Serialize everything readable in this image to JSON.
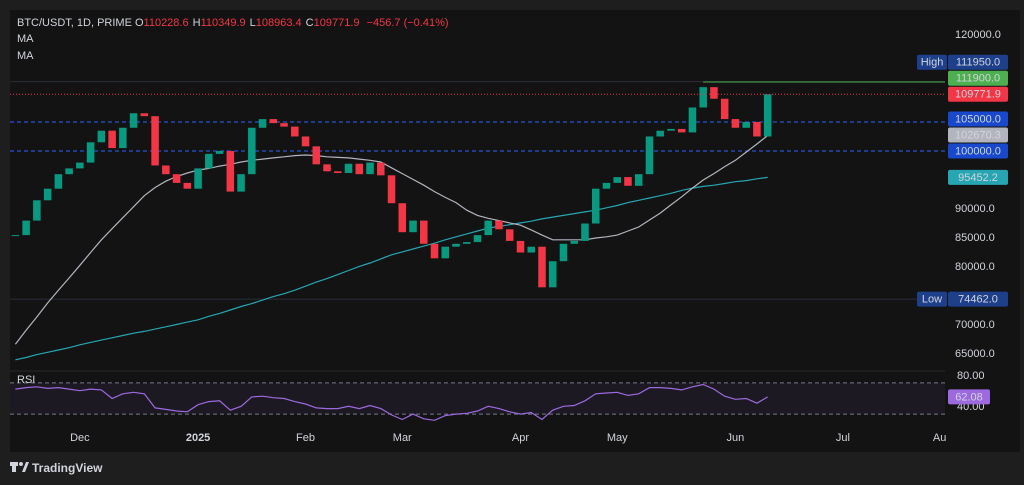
{
  "chart_data": {
    "type": "candlestick",
    "symbol": "BTC/USDT, 1D, PRIME",
    "ohlc": [
      {
        "key": "O",
        "value": 110228.6
      },
      {
        "key": "H",
        "value": 110349.9
      },
      {
        "key": "L",
        "value": 108963.4
      },
      {
        "key": "C",
        "value": 109771.9
      }
    ],
    "change": "−456.7 (−0.41%)",
    "categories": [
      null,
      null,
      null,
      null,
      null,
      null,
      "Dec",
      null,
      null,
      null,
      null,
      null,
      null,
      null,
      null,
      null,
      null,
      "2025",
      null,
      null,
      null,
      null,
      null,
      null,
      null,
      null,
      null,
      "Feb",
      null,
      null,
      null,
      null,
      null,
      null,
      null,
      null,
      "Mar",
      null,
      null,
      null,
      null,
      null,
      null,
      null,
      null,
      null,
      null,
      "Apr",
      null,
      null,
      null,
      null,
      null,
      null,
      null,
      null,
      "May",
      null,
      null,
      null,
      null,
      null,
      null,
      null,
      null,
      null,
      null,
      "Jun",
      null,
      null,
      null,
      null,
      null,
      null,
      null,
      null,
      null,
      "Jul",
      null,
      null,
      null,
      null,
      null,
      null,
      null,
      null,
      "Au"
    ],
    "series": [
      {
        "up_color": "#089981",
        "down_color": "#f23645",
        "values": [
          85500,
          88000,
          91500,
          93500,
          96000,
          97000,
          98000,
          101500,
          103500,
          100500,
          104000,
          106500,
          106000,
          97500,
          96000,
          94500,
          93500,
          97000,
          99500,
          100000,
          93000,
          96000,
          104000,
          105500,
          104800,
          104200,
          102500,
          100800,
          97700,
          96500,
          96200,
          97800,
          96000,
          98000,
          95800,
          91000,
          86000,
          88000,
          84000,
          81500,
          83500,
          84000,
          84300,
          85500,
          88000,
          86500,
          84500,
          82500,
          83500,
          76500,
          81000,
          84000,
          84500,
          87500,
          93500,
          94500,
          95500,
          94000,
          96000,
          102500,
          103500,
          103800,
          103200,
          107500,
          111000,
          109000,
          105500,
          104000,
          105000,
          102500,
          109771.9,
          null,
          null,
          null,
          null,
          null,
          null,
          null,
          null,
          null,
          null,
          null,
          null,
          null,
          null,
          null,
          null
        ]
      },
      {
        "name": "MA",
        "color": "#b2b5be",
        "values": [
          66700,
          69100,
          71400,
          73800,
          76000,
          78100,
          80300,
          82500,
          84700,
          86600,
          88500,
          90400,
          92300,
          93700,
          94800,
          95600,
          96200,
          96700,
          97000,
          97400,
          97700,
          98100,
          98400,
          98600,
          98800,
          99000,
          99200,
          99300,
          99200,
          99000,
          98900,
          98800,
          98600,
          98400,
          98100,
          97100,
          96100,
          95100,
          94100,
          93000,
          92000,
          91100,
          89800,
          88900,
          88400,
          88000,
          87600,
          87200,
          86400,
          85500,
          84700,
          84700,
          84700,
          84700,
          85000,
          85200,
          85500,
          86200,
          86900,
          88100,
          89300,
          90700,
          92100,
          93600,
          95000,
          96100,
          97300,
          98400,
          99800,
          101200,
          102670.3,
          null,
          null,
          null,
          null,
          null,
          null,
          null,
          null,
          null,
          null,
          null,
          null,
          null,
          null,
          null,
          null
        ]
      },
      {
        "name": "MA",
        "color": "#26a6b2",
        "values": [
          64000,
          64400,
          64900,
          65300,
          65700,
          66100,
          66600,
          67000,
          67400,
          67800,
          68200,
          68600,
          68900,
          69300,
          69700,
          70100,
          70500,
          70900,
          71500,
          72000,
          72600,
          73200,
          73700,
          74300,
          74900,
          75400,
          76000,
          76700,
          77400,
          78000,
          78700,
          79400,
          80100,
          80700,
          81400,
          82100,
          82600,
          83100,
          83600,
          84100,
          84700,
          85200,
          85700,
          86200,
          86700,
          87000,
          87300,
          87600,
          87900,
          88300,
          88600,
          88900,
          89200,
          89500,
          89800,
          90200,
          90600,
          91100,
          91500,
          91900,
          92300,
          92700,
          93200,
          93600,
          93900,
          94100,
          94400,
          94700,
          94900,
          95200,
          95452.2,
          null,
          null,
          null,
          null,
          null,
          null,
          null,
          null,
          null,
          null,
          null,
          null,
          null,
          null,
          null,
          null
        ]
      }
    ],
    "ylim": [
      62250,
      124300
    ],
    "yticks": [
      {
        "value": 120000,
        "label": "120000.0"
      },
      {
        "value": 90000,
        "label": "90000.0"
      },
      {
        "value": 85000,
        "label": "85000.0"
      },
      {
        "value": 80000,
        "label": "80000.0"
      },
      {
        "value": 70000,
        "label": "70000.0"
      },
      {
        "value": 65000,
        "label": "65000.0"
      }
    ],
    "price_labels": [
      {
        "tag": "High",
        "value": 111950,
        "label": "111950.0",
        "color": "#1e3f8a",
        "line": "solid",
        "line_color": "#2a2e39"
      },
      {
        "value": 111900,
        "label": "111900.0",
        "color": "#4caf50",
        "line": "solid",
        "line_color": "#4caf50"
      },
      {
        "value": 105000,
        "label": "105000.0",
        "color": "#1848cc",
        "line": "dashed",
        "line_color": "#2962ff"
      },
      {
        "value": 100000,
        "label": "100000.0",
        "color": "#1848cc",
        "line": "dashed",
        "line_color": "#2962ff"
      },
      {
        "tag": "Low",
        "value": 74462,
        "label": "74462.0",
        "color": "#1e3f8a",
        "line": "solid",
        "line_color": "#2a2e39"
      }
    ],
    "rsi": {
      "title": "RSI",
      "color": "#9c6ade",
      "ylim": [
        26,
        94
      ],
      "yticks": [
        {
          "value": 80,
          "label": "80.00"
        },
        {
          "value": 40,
          "label": "40.00"
        }
      ],
      "values": [
        72,
        74,
        75,
        73,
        74,
        72,
        70,
        72,
        71,
        60,
        66,
        68,
        66,
        48,
        46,
        44,
        43,
        52,
        56,
        57,
        45,
        50,
        62,
        63,
        61,
        60,
        56,
        53,
        48,
        47,
        47,
        50,
        47,
        51,
        47,
        39,
        33,
        40,
        34,
        32,
        38,
        40,
        41,
        44,
        50,
        47,
        43,
        40,
        42,
        33,
        45,
        50,
        51,
        57,
        66,
        67,
        68,
        64,
        66,
        74,
        74,
        73,
        71,
        75,
        78,
        72,
        63,
        59,
        60,
        54,
        62.08,
        null,
        null,
        null,
        null,
        null,
        null,
        null,
        null,
        null,
        null,
        null,
        null,
        null,
        null,
        null,
        null
      ]
    },
    "footer": "TradingView"
  }
}
